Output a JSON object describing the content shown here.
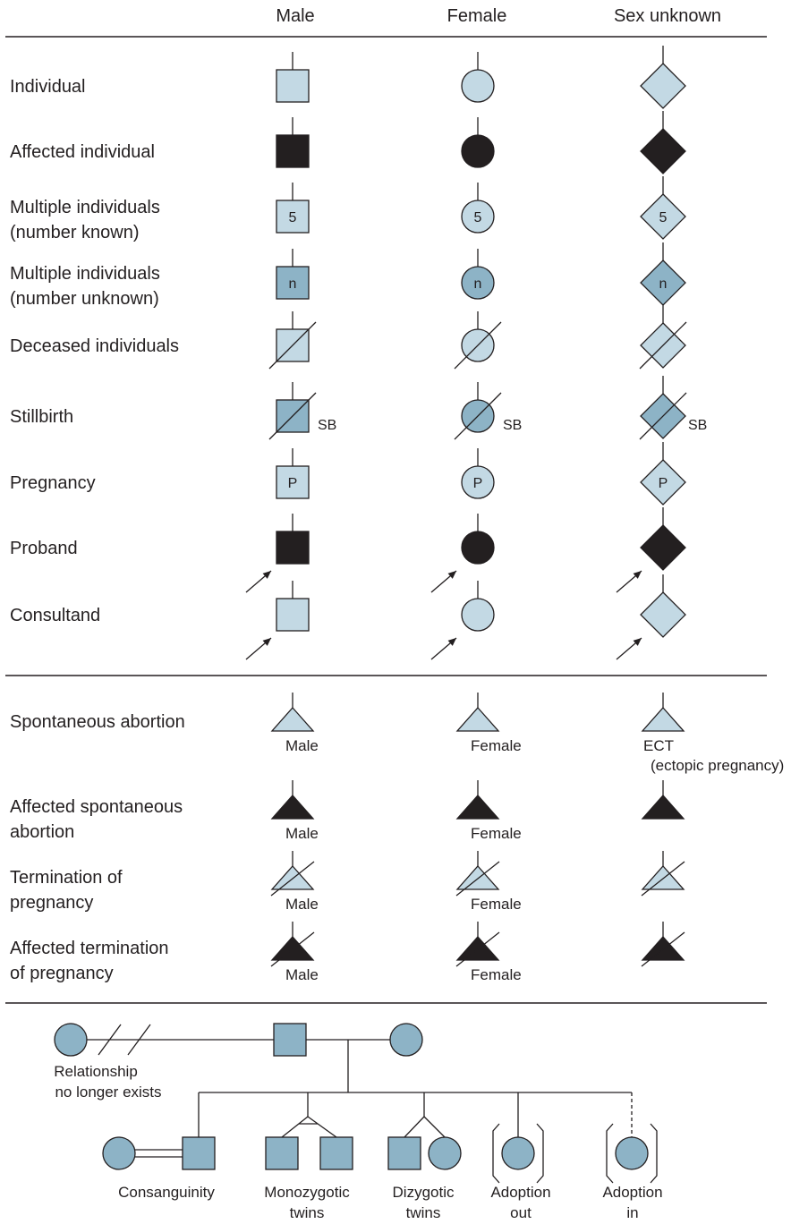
{
  "colors": {
    "light": "#c3d9e4",
    "medium": "#8db3c6",
    "affected": "#231f20",
    "stroke": "#231f20"
  },
  "headers": {
    "male": "Male",
    "female": "Female",
    "unknown": "Sex unknown"
  },
  "rows": [
    {
      "label": [
        "Individual"
      ],
      "fill": "light"
    },
    {
      "label": [
        "Affected individual"
      ],
      "fill": "affected"
    },
    {
      "label": [
        "Multiple individuals",
        "(number known)"
      ],
      "fill": "light",
      "symbol_text": "5"
    },
    {
      "label": [
        "Multiple individuals",
        "(number unknown)"
      ],
      "fill": "medium",
      "symbol_text": "n"
    },
    {
      "label": [
        "Deceased individuals"
      ],
      "fill": "light",
      "slash": true
    },
    {
      "label": [
        "Stillbirth"
      ],
      "fill": "medium",
      "slash": true,
      "suffix": "SB"
    },
    {
      "label": [
        "Pregnancy"
      ],
      "fill": "light",
      "symbol_text": "P"
    },
    {
      "label": [
        "Proband"
      ],
      "fill": "affected",
      "arrow": true
    },
    {
      "label": [
        "Consultand"
      ],
      "fill": "light",
      "arrow": true,
      "no_p": true
    }
  ],
  "abortion_rows": [
    {
      "label": [
        "Spontaneous abortion"
      ],
      "fill": "light",
      "captions": [
        "Male",
        "Female",
        "ECT"
      ],
      "extra_caption": "(ectopic pregnancy)"
    },
    {
      "label": [
        "Affected spontaneous",
        "abortion"
      ],
      "fill": "affected",
      "captions": [
        "Male",
        "Female",
        ""
      ]
    },
    {
      "label": [
        "Termination of",
        "pregnancy"
      ],
      "fill": "light",
      "slash": true,
      "captions": [
        "Male",
        "Female",
        ""
      ]
    },
    {
      "label": [
        "Affected termination",
        "of pregnancy"
      ],
      "fill": "affected",
      "slash": true,
      "captions": [
        "Male",
        "Female",
        ""
      ]
    }
  ],
  "family": {
    "relationship_label": [
      "Relationship",
      "no longer exists"
    ],
    "consanguinity": "Consanguinity",
    "monozygotic": [
      "Monozygotic",
      "twins"
    ],
    "dizygotic": [
      "Dizygotic",
      "twins"
    ],
    "adoption_out": [
      "Adoption",
      "out"
    ],
    "adoption_in": [
      "Adoption",
      "in"
    ]
  }
}
